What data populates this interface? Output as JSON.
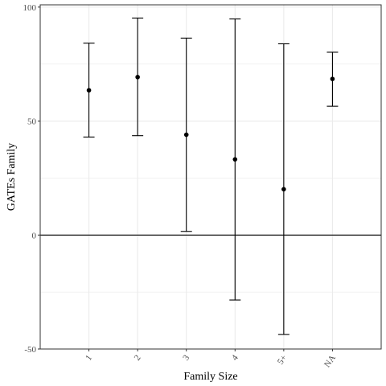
{
  "chart_data": {
    "type": "scatter",
    "xlabel": "Family Size",
    "ylabel": "GATEs Family",
    "categories": [
      "1",
      "2",
      "3",
      "4",
      "5+",
      "NA"
    ],
    "estimates": [
      63.5,
      69.3,
      44.0,
      33.2,
      20.1,
      68.5
    ],
    "ci_lower": [
      43.0,
      43.6,
      1.6,
      -28.5,
      -43.6,
      56.5
    ],
    "ci_upper": [
      84.2,
      95.2,
      86.4,
      94.8,
      83.9,
      80.2
    ],
    "yticks": [
      -50,
      0,
      50,
      100
    ],
    "ylim": [
      -50,
      101
    ],
    "grid": true,
    "reference_line": 0,
    "colors": {
      "points": "#000000",
      "errorbars": "#000000",
      "grid": "#ebebeb",
      "panel_border": "#333333"
    }
  }
}
